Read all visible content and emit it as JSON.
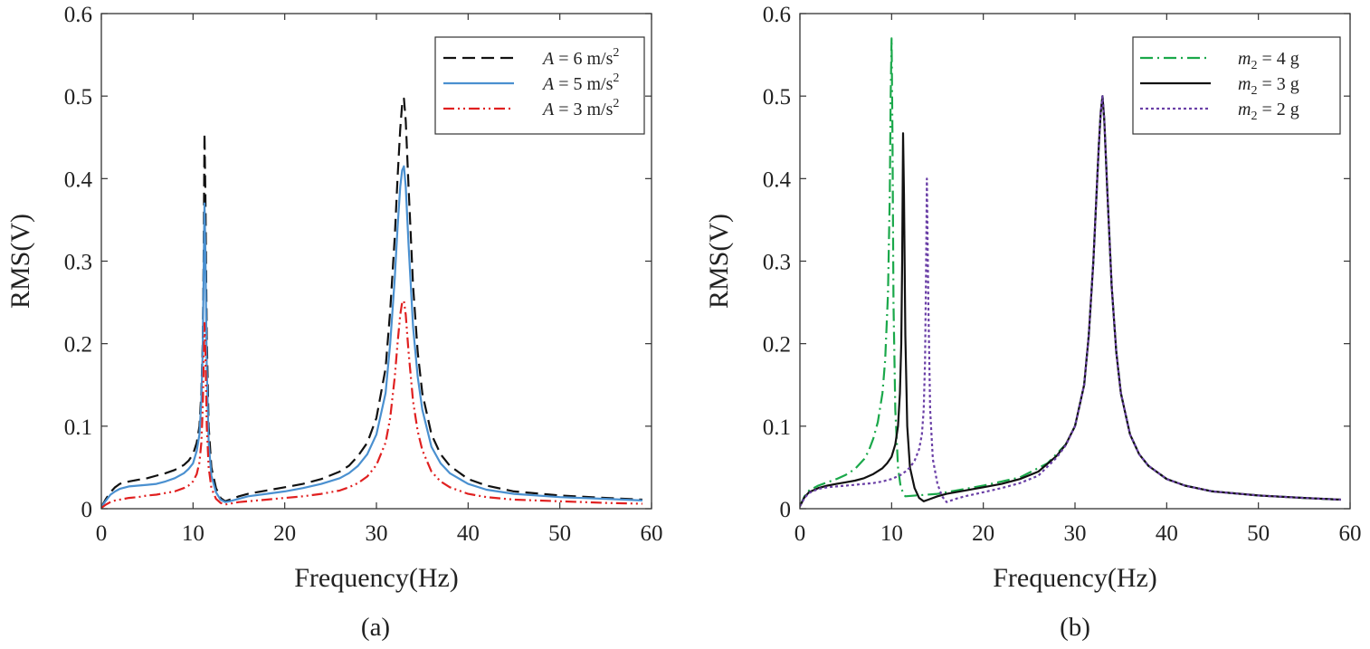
{
  "chart_data": [
    {
      "type": "line",
      "panel_label": "(a)",
      "xlabel": "Frequency(Hz)",
      "ylabel": "RMS(V)",
      "xlim": [
        0,
        60
      ],
      "ylim": [
        0,
        0.6
      ],
      "xticks": [
        "0",
        "10",
        "20",
        "30",
        "40",
        "50",
        "60"
      ],
      "yticks": [
        "0",
        "0.1",
        "0.2",
        "0.3",
        "0.4",
        "0.5",
        "0.6"
      ],
      "grid": false,
      "legend_position": "top-right",
      "series": [
        {
          "name": "A = 6 m/s²",
          "legend": {
            "var": "A",
            "eq": " = 6 m/s",
            "sup": "2",
            "sub": ""
          },
          "color": "#111111",
          "dash": "dashed",
          "x": [
            0,
            0.5,
            1,
            1.5,
            2,
            3,
            4,
            5,
            6,
            7,
            8,
            9,
            9.5,
            10,
            10.4,
            10.7,
            10.9,
            11.05,
            11.15,
            11.25,
            11.35,
            11.5,
            11.7,
            12,
            12.5,
            13,
            13.5,
            14,
            15,
            16,
            18,
            20,
            22,
            24,
            26,
            27,
            28,
            29,
            30,
            31,
            31.5,
            32,
            32.3,
            32.6,
            32.8,
            33,
            33.2,
            33.5,
            34,
            34.5,
            35,
            36,
            37,
            38,
            40,
            42,
            45,
            50,
            55,
            59
          ],
          "y": [
            0.002,
            0.012,
            0.02,
            0.026,
            0.03,
            0.033,
            0.035,
            0.037,
            0.04,
            0.043,
            0.047,
            0.053,
            0.058,
            0.066,
            0.08,
            0.1,
            0.14,
            0.2,
            0.3,
            0.455,
            0.38,
            0.21,
            0.1,
            0.05,
            0.025,
            0.013,
            0.009,
            0.011,
            0.015,
            0.018,
            0.022,
            0.026,
            0.03,
            0.036,
            0.045,
            0.052,
            0.064,
            0.08,
            0.11,
            0.17,
            0.24,
            0.33,
            0.4,
            0.46,
            0.49,
            0.497,
            0.47,
            0.39,
            0.27,
            0.19,
            0.14,
            0.09,
            0.066,
            0.052,
            0.036,
            0.028,
            0.021,
            0.016,
            0.013,
            0.011
          ]
        },
        {
          "name": "A = 5 m/s²",
          "legend": {
            "var": "A",
            "eq": " = 5 m/s",
            "sup": "2",
            "sub": ""
          },
          "color": "#4a90d0",
          "dash": "solid",
          "x": [
            0,
            0.5,
            1,
            1.5,
            2,
            3,
            4,
            5,
            6,
            7,
            8,
            9,
            9.5,
            10,
            10.4,
            10.7,
            10.9,
            11.05,
            11.15,
            11.25,
            11.35,
            11.5,
            11.7,
            12,
            12.5,
            13,
            13.5,
            14,
            15,
            16,
            18,
            20,
            22,
            24,
            26,
            27,
            28,
            29,
            30,
            31,
            31.5,
            32,
            32.3,
            32.6,
            32.8,
            33,
            33.2,
            33.5,
            34,
            34.5,
            35,
            36,
            37,
            38,
            40,
            42,
            45,
            50,
            55,
            59
          ],
          "y": [
            0.002,
            0.01,
            0.017,
            0.021,
            0.024,
            0.027,
            0.028,
            0.029,
            0.03,
            0.033,
            0.037,
            0.043,
            0.048,
            0.055,
            0.07,
            0.09,
            0.13,
            0.19,
            0.28,
            0.37,
            0.31,
            0.17,
            0.08,
            0.04,
            0.02,
            0.011,
            0.008,
            0.009,
            0.012,
            0.015,
            0.018,
            0.021,
            0.025,
            0.03,
            0.037,
            0.043,
            0.052,
            0.066,
            0.09,
            0.14,
            0.2,
            0.28,
            0.34,
            0.39,
            0.41,
            0.415,
            0.39,
            0.32,
            0.22,
            0.16,
            0.12,
            0.075,
            0.055,
            0.043,
            0.03,
            0.023,
            0.018,
            0.014,
            0.012,
            0.01
          ]
        },
        {
          "name": "A = 3 m/s²",
          "legend": {
            "var": "A",
            "eq": " = 3 m/s",
            "sup": "2",
            "sub": ""
          },
          "color": "#e02020",
          "dash": "dashdotdot",
          "x": [
            0,
            0.5,
            1,
            1.5,
            2,
            3,
            4,
            5,
            6,
            7,
            8,
            9,
            9.5,
            10,
            10.4,
            10.7,
            10.9,
            11.05,
            11.15,
            11.25,
            11.35,
            11.5,
            11.7,
            12,
            12.5,
            13,
            13.5,
            14,
            15,
            16,
            18,
            20,
            22,
            24,
            26,
            27,
            28,
            29,
            30,
            31,
            31.5,
            32,
            32.3,
            32.6,
            32.8,
            33,
            33.2,
            33.5,
            34,
            34.5,
            35,
            36,
            37,
            38,
            40,
            42,
            45,
            50,
            55,
            59
          ],
          "y": [
            0.001,
            0.005,
            0.008,
            0.01,
            0.011,
            0.013,
            0.014,
            0.016,
            0.017,
            0.019,
            0.021,
            0.025,
            0.028,
            0.033,
            0.042,
            0.056,
            0.08,
            0.12,
            0.17,
            0.225,
            0.19,
            0.1,
            0.05,
            0.025,
            0.012,
            0.007,
            0.005,
            0.006,
            0.008,
            0.009,
            0.011,
            0.013,
            0.015,
            0.018,
            0.022,
            0.026,
            0.031,
            0.039,
            0.053,
            0.08,
            0.11,
            0.16,
            0.2,
            0.235,
            0.25,
            0.252,
            0.235,
            0.19,
            0.13,
            0.094,
            0.071,
            0.045,
            0.033,
            0.026,
            0.018,
            0.014,
            0.011,
            0.009,
            0.007,
            0.006
          ]
        }
      ]
    },
    {
      "type": "line",
      "panel_label": "(b)",
      "xlabel": "Frequency(Hz)",
      "ylabel": "RMS(V)",
      "xlim": [
        0,
        60
      ],
      "ylim": [
        0,
        0.6
      ],
      "xticks": [
        "0",
        "10",
        "20",
        "30",
        "40",
        "50",
        "60"
      ],
      "yticks": [
        "0",
        "0.1",
        "0.2",
        "0.3",
        "0.4",
        "0.5",
        "0.6"
      ],
      "grid": false,
      "legend_position": "top-right",
      "series": [
        {
          "name": "m2 = 4 g",
          "legend": {
            "var": "m",
            "sub": "2",
            "eq": " = 4 g",
            "sup": ""
          },
          "color": "#1aa84a",
          "dash": "dashdot",
          "x": [
            0,
            0.5,
            1,
            2,
            3,
            4,
            5,
            6,
            7,
            7.5,
            8,
            8.5,
            9,
            9.3,
            9.6,
            9.8,
            9.9,
            10,
            10.1,
            10.2,
            10.4,
            10.7,
            11,
            11.5,
            15,
            17,
            20,
            24,
            27,
            29,
            30,
            31,
            31.5,
            32,
            32.3,
            32.6,
            32.8,
            33,
            33.2,
            33.5,
            34,
            34.5,
            35,
            36,
            37,
            38,
            40,
            42,
            45,
            50,
            55,
            59
          ],
          "y": [
            0.003,
            0.015,
            0.022,
            0.028,
            0.032,
            0.036,
            0.041,
            0.048,
            0.06,
            0.07,
            0.085,
            0.105,
            0.14,
            0.18,
            0.26,
            0.38,
            0.5,
            0.57,
            0.45,
            0.25,
            0.12,
            0.05,
            0.025,
            0.015,
            0.018,
            0.022,
            0.028,
            0.038,
            0.055,
            0.078,
            0.1,
            0.15,
            0.21,
            0.3,
            0.37,
            0.44,
            0.48,
            0.5,
            0.47,
            0.39,
            0.27,
            0.19,
            0.14,
            0.09,
            0.066,
            0.052,
            0.036,
            0.028,
            0.021,
            0.016,
            0.013,
            0.011
          ]
        },
        {
          "name": "m2 = 3 g",
          "legend": {
            "var": "m",
            "sub": "2",
            "eq": " = 3 g",
            "sup": ""
          },
          "color": "#111111",
          "dash": "solid",
          "x": [
            0,
            0.5,
            1,
            2,
            3,
            4,
            5,
            6,
            7,
            8,
            9,
            9.5,
            10,
            10.4,
            10.7,
            10.9,
            11.05,
            11.15,
            11.25,
            11.35,
            11.5,
            11.7,
            12,
            12.5,
            13,
            13.5,
            14,
            15,
            16,
            18,
            20,
            22,
            24,
            26,
            28,
            29,
            30,
            31,
            31.5,
            32,
            32.3,
            32.6,
            32.8,
            33,
            33.2,
            33.5,
            34,
            34.5,
            35,
            36,
            37,
            38,
            40,
            42,
            45,
            50,
            55,
            59
          ],
          "y": [
            0.003,
            0.014,
            0.02,
            0.025,
            0.028,
            0.03,
            0.032,
            0.034,
            0.037,
            0.042,
            0.049,
            0.055,
            0.063,
            0.078,
            0.1,
            0.14,
            0.2,
            0.3,
            0.455,
            0.38,
            0.21,
            0.1,
            0.05,
            0.025,
            0.013,
            0.009,
            0.011,
            0.015,
            0.018,
            0.022,
            0.026,
            0.03,
            0.036,
            0.045,
            0.064,
            0.078,
            0.1,
            0.15,
            0.21,
            0.3,
            0.37,
            0.44,
            0.48,
            0.5,
            0.47,
            0.39,
            0.27,
            0.19,
            0.14,
            0.09,
            0.066,
            0.052,
            0.036,
            0.028,
            0.021,
            0.016,
            0.013,
            0.011
          ]
        },
        {
          "name": "m2 = 2 g",
          "legend": {
            "var": "m",
            "sub": "2",
            "eq": " = 2 g",
            "sup": ""
          },
          "color": "#6a3fa6",
          "dash": "dotted",
          "x": [
            0,
            0.5,
            1,
            2,
            3,
            4,
            5,
            6,
            7,
            8,
            9,
            10,
            11,
            11.5,
            12,
            12.5,
            13,
            13.3,
            13.5,
            13.65,
            13.75,
            13.85,
            14,
            14.2,
            14.5,
            15,
            15.5,
            16,
            17,
            18,
            20,
            22,
            24,
            26,
            28,
            29,
            30,
            31,
            31.5,
            32,
            32.3,
            32.6,
            32.8,
            33,
            33.2,
            33.5,
            34,
            34.5,
            35,
            36,
            37,
            38,
            40,
            42,
            45,
            50,
            55,
            59
          ],
          "y": [
            0.003,
            0.013,
            0.019,
            0.024,
            0.026,
            0.027,
            0.028,
            0.029,
            0.03,
            0.031,
            0.033,
            0.036,
            0.041,
            0.045,
            0.05,
            0.058,
            0.072,
            0.09,
            0.12,
            0.18,
            0.28,
            0.4,
            0.25,
            0.12,
            0.06,
            0.03,
            0.015,
            0.008,
            0.012,
            0.015,
            0.02,
            0.025,
            0.031,
            0.04,
            0.062,
            0.077,
            0.1,
            0.15,
            0.21,
            0.3,
            0.37,
            0.44,
            0.48,
            0.5,
            0.47,
            0.39,
            0.27,
            0.19,
            0.14,
            0.09,
            0.066,
            0.052,
            0.036,
            0.028,
            0.021,
            0.016,
            0.013,
            0.011
          ]
        }
      ]
    }
  ]
}
